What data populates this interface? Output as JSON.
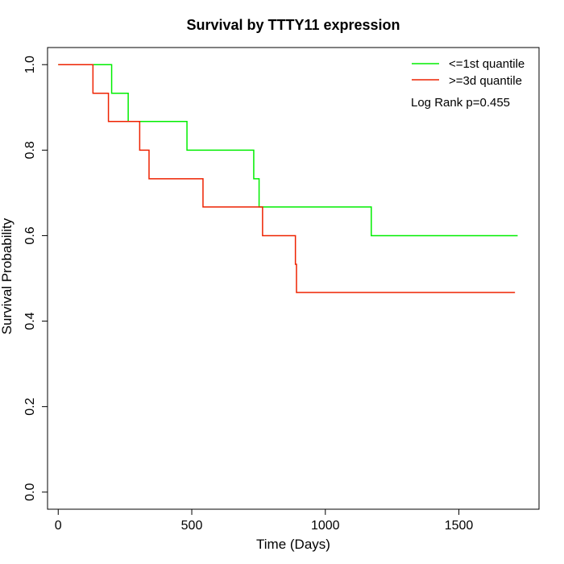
{
  "chart_data": {
    "type": "line",
    "title": "Survival by TTTY11 expression",
    "xlabel": "Time (Days)",
    "ylabel": "Survival Probability",
    "xlim": [
      -40,
      1800
    ],
    "ylim": [
      -0.04,
      1.04
    ],
    "xticks": [
      0,
      500,
      1000,
      1500
    ],
    "yticks": [
      0.0,
      0.2,
      0.4,
      0.6,
      0.8,
      1.0
    ],
    "xtick_labels": [
      "0",
      "500",
      "1000",
      "1500"
    ],
    "ytick_labels": [
      "0.0",
      "0.2",
      "0.4",
      "0.6",
      "0.8",
      "1.0"
    ],
    "legend_position": "top-right",
    "annotation": "Log Rank p=0.455",
    "grid": false,
    "series": [
      {
        "name": "<=1st quantile",
        "color": "#00ee00",
        "steps": [
          [
            0,
            1.0
          ],
          [
            200,
            0.933
          ],
          [
            262,
            0.867
          ],
          [
            482,
            0.8
          ],
          [
            732,
            0.733
          ],
          [
            752,
            0.667
          ],
          [
            1172,
            0.6
          ],
          [
            1720,
            0.6
          ]
        ]
      },
      {
        "name": ">=3d quantile",
        "color": "#ee2200",
        "steps": [
          [
            0,
            1.0
          ],
          [
            130,
            0.933
          ],
          [
            188,
            0.867
          ],
          [
            305,
            0.8
          ],
          [
            340,
            0.733
          ],
          [
            542,
            0.667
          ],
          [
            765,
            0.6
          ],
          [
            888,
            0.533
          ],
          [
            892,
            0.467
          ],
          [
            1710,
            0.467
          ]
        ]
      }
    ]
  }
}
